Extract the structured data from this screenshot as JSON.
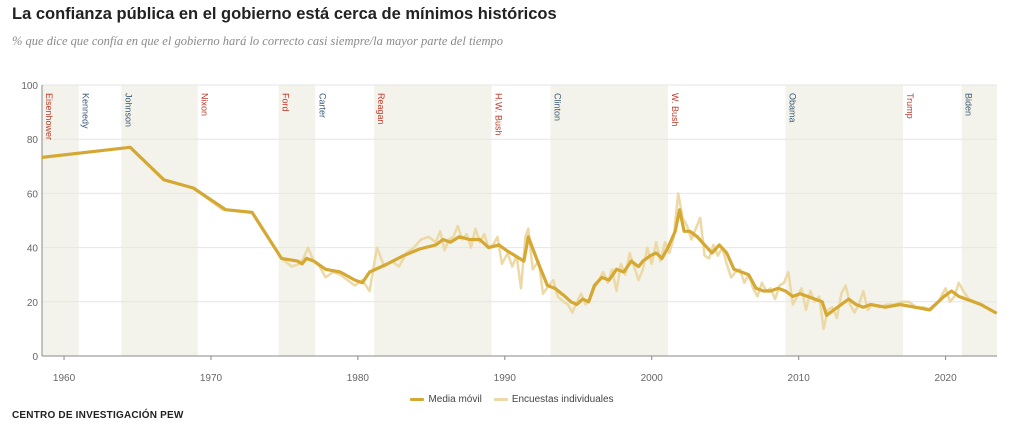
{
  "title": "La confianza pública en el gobierno está cerca de mínimos históricos",
  "subtitle": "% que dice que confía en que el gobierno hará lo correcto casi siempre/la mayor parte del tiempo",
  "source": "CENTRO DE INVESTIGACIÓN PEW",
  "colors": {
    "moving_average": "#d4a832",
    "individual_polls": "#ecd9a6",
    "shade": "#f3f3eb",
    "republican": "#c0392b",
    "democrat": "#3c5a78"
  },
  "chart_data": {
    "type": "line",
    "title": "La confianza pública en el gobierno está cerca de mínimos históricos",
    "subtitle": "% que dice que confía en que el gobierno hará lo correcto casi siempre/la mayor parte del tiempo",
    "xlabel": "",
    "ylabel": "",
    "xlim": [
      1958.5,
      2023.5
    ],
    "ylim": [
      0,
      100
    ],
    "x_ticks": [
      1960,
      1970,
      1980,
      1990,
      2000,
      2010,
      2020
    ],
    "y_ticks": [
      0,
      20,
      40,
      60,
      80,
      100
    ],
    "grid": "horizontal",
    "legend_position": "bottom-center",
    "presidents": [
      {
        "name": "Eisenhower",
        "start": 1958.5,
        "end": 1961.0,
        "party": "R",
        "shaded": true
      },
      {
        "name": "Kennedy",
        "start": 1961.0,
        "end": 1963.9,
        "party": "D",
        "shaded": false
      },
      {
        "name": "Johnson",
        "start": 1963.9,
        "end": 1969.1,
        "party": "D",
        "shaded": true
      },
      {
        "name": "Nixon",
        "start": 1969.1,
        "end": 1974.6,
        "party": "R",
        "shaded": false
      },
      {
        "name": "Ford",
        "start": 1974.6,
        "end": 1977.1,
        "party": "R",
        "shaded": true
      },
      {
        "name": "Carter",
        "start": 1977.1,
        "end": 1981.1,
        "party": "D",
        "shaded": false
      },
      {
        "name": "Reagan",
        "start": 1981.1,
        "end": 1989.1,
        "party": "R",
        "shaded": true
      },
      {
        "name": "H.W. Bush",
        "start": 1989.1,
        "end": 1993.1,
        "party": "R",
        "shaded": false
      },
      {
        "name": "Clinton",
        "start": 1993.1,
        "end": 2001.1,
        "party": "D",
        "shaded": true
      },
      {
        "name": "W. Bush",
        "start": 2001.1,
        "end": 2009.1,
        "party": "R",
        "shaded": false
      },
      {
        "name": "Obama",
        "start": 2009.1,
        "end": 2017.1,
        "party": "D",
        "shaded": true
      },
      {
        "name": "Trump",
        "start": 2017.1,
        "end": 2021.1,
        "party": "R",
        "shaded": false
      },
      {
        "name": "Biden",
        "start": 2021.1,
        "end": 2023.5,
        "party": "D",
        "shaded": true
      }
    ],
    "series": [
      {
        "name": "Media móvil",
        "points": [
          [
            1958,
            73
          ],
          [
            1964.5,
            77
          ],
          [
            1966.8,
            65
          ],
          [
            1968.8,
            62
          ],
          [
            1971,
            54
          ],
          [
            1972.8,
            53
          ],
          [
            1974.8,
            36
          ],
          [
            1975.9,
            35
          ],
          [
            1976.2,
            34
          ],
          [
            1976.5,
            36
          ],
          [
            1977,
            35
          ],
          [
            1977.8,
            32
          ],
          [
            1978.8,
            31
          ],
          [
            1979.8,
            28
          ],
          [
            1980.3,
            27
          ],
          [
            1980.8,
            31
          ],
          [
            1982,
            34
          ],
          [
            1983.1,
            37
          ],
          [
            1984.2,
            39.5
          ],
          [
            1985.3,
            41
          ],
          [
            1985.8,
            43
          ],
          [
            1986.3,
            42
          ],
          [
            1986.9,
            44
          ],
          [
            1987.6,
            43
          ],
          [
            1988.3,
            43
          ],
          [
            1988.9,
            40
          ],
          [
            1989.6,
            41
          ],
          [
            1990.1,
            39
          ],
          [
            1990.7,
            37
          ],
          [
            1991.3,
            35
          ],
          [
            1991.6,
            44
          ],
          [
            1992.3,
            34
          ],
          [
            1992.9,
            26
          ],
          [
            1993.4,
            25
          ],
          [
            1994.1,
            22
          ],
          [
            1994.5,
            20
          ],
          [
            1994.9,
            19
          ],
          [
            1995.3,
            21
          ],
          [
            1995.7,
            20
          ],
          [
            1996.1,
            26
          ],
          [
            1996.6,
            29
          ],
          [
            1997.1,
            28
          ],
          [
            1997.6,
            32
          ],
          [
            1998.1,
            31
          ],
          [
            1998.6,
            35
          ],
          [
            1999.1,
            33
          ],
          [
            1999.4,
            35
          ],
          [
            1999.9,
            37
          ],
          [
            2000.3,
            38
          ],
          [
            2000.7,
            36
          ],
          [
            2001.1,
            40
          ],
          [
            2001.6,
            46
          ],
          [
            2001.9,
            54
          ],
          [
            2002.2,
            46
          ],
          [
            2002.6,
            46
          ],
          [
            2003.1,
            44
          ],
          [
            2003.6,
            41
          ],
          [
            2004.1,
            38
          ],
          [
            2004.6,
            41
          ],
          [
            2005.1,
            38
          ],
          [
            2005.6,
            32
          ],
          [
            2006.1,
            31
          ],
          [
            2006.6,
            30
          ],
          [
            2007.1,
            25
          ],
          [
            2007.6,
            24
          ],
          [
            2008.1,
            24
          ],
          [
            2008.6,
            25
          ],
          [
            2009.1,
            24
          ],
          [
            2009.6,
            22
          ],
          [
            2010.1,
            23
          ],
          [
            2010.6,
            22
          ],
          [
            2011.1,
            21
          ],
          [
            2011.6,
            20
          ],
          [
            2011.9,
            15
          ],
          [
            2012.4,
            17
          ],
          [
            2012.9,
            19
          ],
          [
            2013.4,
            21
          ],
          [
            2013.9,
            19
          ],
          [
            2014.4,
            18
          ],
          [
            2014.9,
            19
          ],
          [
            2015.9,
            18
          ],
          [
            2016.9,
            19
          ],
          [
            2017.9,
            18
          ],
          [
            2018.9,
            17
          ],
          [
            2019.9,
            22
          ],
          [
            2020.4,
            24
          ],
          [
            2020.9,
            22
          ],
          [
            2021.4,
            21
          ],
          [
            2021.9,
            20
          ],
          [
            2022.4,
            19
          ],
          [
            2023.4,
            16
          ]
        ]
      },
      {
        "name": "Encuestas individuales",
        "points": [
          [
            1958,
            73
          ],
          [
            1964.5,
            77
          ],
          [
            1966.8,
            65
          ],
          [
            1968.8,
            62
          ],
          [
            1970.8,
            54
          ],
          [
            1972.8,
            53
          ],
          [
            1974.8,
            36
          ],
          [
            1975.5,
            33
          ],
          [
            1976,
            34
          ],
          [
            1976.3,
            36
          ],
          [
            1976.6,
            40
          ],
          [
            1977,
            35
          ],
          [
            1977.4,
            33
          ],
          [
            1977.8,
            29
          ],
          [
            1978.3,
            31
          ],
          [
            1978.8,
            30
          ],
          [
            1979.3,
            28
          ],
          [
            1979.8,
            26
          ],
          [
            1980.3,
            28
          ],
          [
            1980.8,
            24
          ],
          [
            1981.3,
            40
          ],
          [
            1981.8,
            33
          ],
          [
            1982.3,
            35
          ],
          [
            1982.8,
            33
          ],
          [
            1983.3,
            38
          ],
          [
            1983.8,
            40
          ],
          [
            1984.3,
            43
          ],
          [
            1984.8,
            44
          ],
          [
            1985.3,
            42
          ],
          [
            1985.6,
            46
          ],
          [
            1985.9,
            39
          ],
          [
            1986.2,
            43
          ],
          [
            1986.5,
            44
          ],
          [
            1986.8,
            48
          ],
          [
            1987.1,
            43
          ],
          [
            1987.4,
            45
          ],
          [
            1987.7,
            40
          ],
          [
            1988.0,
            47
          ],
          [
            1988.3,
            42
          ],
          [
            1988.6,
            45
          ],
          [
            1988.9,
            40
          ],
          [
            1989.2,
            41
          ],
          [
            1989.5,
            44
          ],
          [
            1989.8,
            34
          ],
          [
            1990.2,
            38
          ],
          [
            1990.5,
            33
          ],
          [
            1990.8,
            37
          ],
          [
            1991.1,
            25
          ],
          [
            1991.4,
            44
          ],
          [
            1991.6,
            47
          ],
          [
            1991.9,
            32
          ],
          [
            1992.3,
            35
          ],
          [
            1992.6,
            23
          ],
          [
            1993.0,
            26
          ],
          [
            1993.3,
            28
          ],
          [
            1993.6,
            22
          ],
          [
            1994.0,
            20
          ],
          [
            1994.3,
            19
          ],
          [
            1994.6,
            16
          ],
          [
            1994.9,
            20
          ],
          [
            1995.2,
            23
          ],
          [
            1995.5,
            19
          ],
          [
            1995.8,
            21
          ],
          [
            1996.1,
            25
          ],
          [
            1996.4,
            28
          ],
          [
            1996.7,
            31
          ],
          [
            1997.0,
            27
          ],
          [
            1997.3,
            32
          ],
          [
            1997.6,
            24
          ],
          [
            1997.9,
            34
          ],
          [
            1998.2,
            30
          ],
          [
            1998.5,
            38
          ],
          [
            1998.8,
            33
          ],
          [
            1999.1,
            28
          ],
          [
            1999.4,
            32
          ],
          [
            1999.7,
            40
          ],
          [
            2000.0,
            34
          ],
          [
            2000.3,
            42
          ],
          [
            2000.6,
            35
          ],
          [
            2000.9,
            42
          ],
          [
            2001.2,
            38
          ],
          [
            2001.5,
            44
          ],
          [
            2001.8,
            60
          ],
          [
            2002.1,
            51
          ],
          [
            2002.4,
            48
          ],
          [
            2002.7,
            43
          ],
          [
            2003.0,
            47
          ],
          [
            2003.3,
            51
          ],
          [
            2003.6,
            37
          ],
          [
            2003.9,
            36
          ],
          [
            2004.2,
            41
          ],
          [
            2004.5,
            37
          ],
          [
            2004.8,
            40
          ],
          [
            2005.1,
            34
          ],
          [
            2005.4,
            29
          ],
          [
            2005.7,
            31
          ],
          [
            2006.0,
            32
          ],
          [
            2006.3,
            27
          ],
          [
            2006.6,
            30
          ],
          [
            2006.9,
            25
          ],
          [
            2007.2,
            22
          ],
          [
            2007.5,
            27
          ],
          [
            2007.8,
            24
          ],
          [
            2008.1,
            25
          ],
          [
            2008.4,
            21
          ],
          [
            2008.7,
            26
          ],
          [
            2009.0,
            27
          ],
          [
            2009.3,
            31
          ],
          [
            2009.6,
            19
          ],
          [
            2009.9,
            22
          ],
          [
            2010.2,
            25
          ],
          [
            2010.5,
            17
          ],
          [
            2010.8,
            24
          ],
          [
            2011.1,
            20
          ],
          [
            2011.4,
            22
          ],
          [
            2011.7,
            10
          ],
          [
            2012.0,
            17
          ],
          [
            2012.3,
            18
          ],
          [
            2012.6,
            14
          ],
          [
            2012.9,
            23
          ],
          [
            2013.2,
            26
          ],
          [
            2013.5,
            19
          ],
          [
            2013.8,
            16
          ],
          [
            2014.1,
            19
          ],
          [
            2014.4,
            24
          ],
          [
            2014.7,
            17
          ],
          [
            2015.0,
            19
          ],
          [
            2015.5,
            18
          ],
          [
            2016.0,
            19
          ],
          [
            2016.5,
            19
          ],
          [
            2017.0,
            20
          ],
          [
            2017.5,
            20
          ],
          [
            2018.0,
            18
          ],
          [
            2018.5,
            18
          ],
          [
            2019.0,
            17
          ],
          [
            2019.5,
            20
          ],
          [
            2020.0,
            25
          ],
          [
            2020.3,
            20
          ],
          [
            2020.6,
            22
          ],
          [
            2020.9,
            27
          ],
          [
            2021.2,
            24
          ],
          [
            2021.6,
            21
          ],
          [
            2022.0,
            20
          ],
          [
            2022.5,
            19
          ],
          [
            2023.0,
            17
          ],
          [
            2023.4,
            16
          ]
        ]
      }
    ]
  },
  "legend": [
    {
      "label": "Media móvil",
      "color": "#d4a832"
    },
    {
      "label": "Encuestas individuales",
      "color": "#ecd9a6"
    }
  ]
}
